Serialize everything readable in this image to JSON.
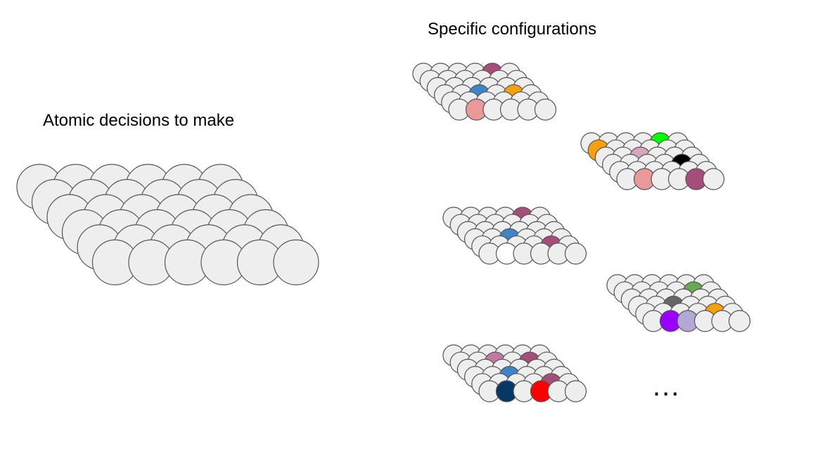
{
  "left_panel": {
    "title": "Atomic decisions to make"
  },
  "right_panel": {
    "title": "Specific configurations",
    "more_indicator": "..."
  },
  "colors": {
    "default_atom": "#eeeeee",
    "atom_stroke": "#555555"
  },
  "grid": {
    "rows": 6,
    "cols": 6
  },
  "configurations": [
    {
      "highlights": [
        {
          "row": 0,
          "col": 4,
          "color": "#a64d79"
        },
        {
          "row": 3,
          "col": 2,
          "color": "#3d85c6"
        },
        {
          "row": 3,
          "col": 4,
          "color": "#f6a00c"
        },
        {
          "row": 5,
          "col": 1,
          "color": "#ea9999"
        }
      ]
    },
    {
      "highlights": [
        {
          "row": 0,
          "col": 4,
          "color": "#00ff00"
        },
        {
          "row": 1,
          "col": 0,
          "color": "#f6a00c"
        },
        {
          "row": 2,
          "col": 2,
          "color": "#d5a6bd"
        },
        {
          "row": 3,
          "col": 4,
          "color": "#000000"
        },
        {
          "row": 5,
          "col": 1,
          "color": "#ea9999"
        },
        {
          "row": 5,
          "col": 4,
          "color": "#a64d79"
        }
      ]
    },
    {
      "highlights": [
        {
          "row": 0,
          "col": 4,
          "color": "#a64d79"
        },
        {
          "row": 3,
          "col": 2,
          "color": "#3d85c6"
        },
        {
          "row": 4,
          "col": 4,
          "color": "#a64d79"
        },
        {
          "row": 5,
          "col": 1,
          "color": "#ffffff"
        }
      ]
    },
    {
      "highlights": [
        {
          "row": 1,
          "col": 4,
          "color": "#6aa84f"
        },
        {
          "row": 3,
          "col": 2,
          "color": "#666666"
        },
        {
          "row": 4,
          "col": 4,
          "color": "#f6a00c"
        },
        {
          "row": 5,
          "col": 1,
          "color": "#9900ff"
        },
        {
          "row": 5,
          "col": 2,
          "color": "#b4a7d6"
        }
      ]
    },
    {
      "highlights": [
        {
          "row": 1,
          "col": 2,
          "color": "#c27ba0"
        },
        {
          "row": 1,
          "col": 4,
          "color": "#a64d79"
        },
        {
          "row": 3,
          "col": 2,
          "color": "#3d85c6"
        },
        {
          "row": 4,
          "col": 4,
          "color": "#a64d79"
        },
        {
          "row": 5,
          "col": 1,
          "color": "#073763"
        },
        {
          "row": 5,
          "col": 3,
          "color": "#ff0000"
        }
      ]
    }
  ]
}
